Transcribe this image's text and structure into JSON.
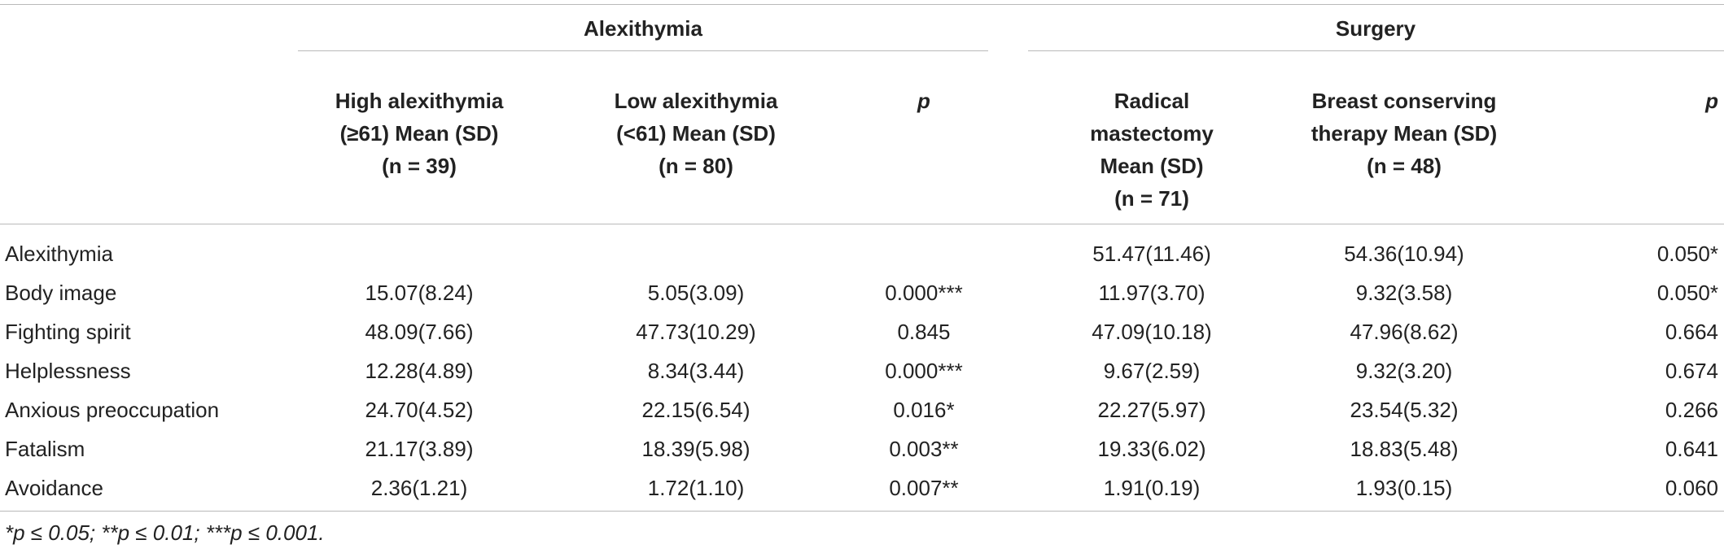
{
  "table": {
    "groups": {
      "alexithymia": "Alexithymia",
      "surgery": "Surgery"
    },
    "headers": {
      "high": [
        "High alexithymia",
        "(≥61) Mean (SD)",
        "(n = 39)"
      ],
      "low": [
        "Low alexithymia",
        "(<61) Mean (SD)",
        "(n = 80)"
      ],
      "p1": "p",
      "radical": [
        "Radical",
        "mastectomy",
        "Mean (SD)",
        "(n = 71)"
      ],
      "breast": [
        "Breast conserving",
        "therapy Mean (SD)",
        "(n = 48)"
      ],
      "p2": "p"
    },
    "rows": [
      {
        "label": "Alexithymia",
        "high": "",
        "low": "",
        "p1": "",
        "radical": "51.47(11.46)",
        "breast": "54.36(10.94)",
        "p2": "0.050*"
      },
      {
        "label": "Body image",
        "high": "15.07(8.24)",
        "low": "5.05(3.09)",
        "p1": "0.000***",
        "radical": "11.97(3.70)",
        "breast": "9.32(3.58)",
        "p2": "0.050*"
      },
      {
        "label": "Fighting spirit",
        "high": "48.09(7.66)",
        "low": "47.73(10.29)",
        "p1": "0.845",
        "radical": "47.09(10.18)",
        "breast": "47.96(8.62)",
        "p2": "0.664"
      },
      {
        "label": "Helplessness",
        "high": "12.28(4.89)",
        "low": "8.34(3.44)",
        "p1": "0.000***",
        "radical": "9.67(2.59)",
        "breast": "9.32(3.20)",
        "p2": "0.674"
      },
      {
        "label": "Anxious preoccupation",
        "high": "24.70(4.52)",
        "low": "22.15(6.54)",
        "p1": "0.016*",
        "radical": "22.27(5.97)",
        "breast": "23.54(5.32)",
        "p2": "0.266"
      },
      {
        "label": "Fatalism",
        "high": "21.17(3.89)",
        "low": "18.39(5.98)",
        "p1": "0.003**",
        "radical": "19.33(6.02)",
        "breast": "18.83(5.48)",
        "p2": "0.641"
      },
      {
        "label": "Avoidance",
        "high": "2.36(1.21)",
        "low": "1.72(1.10)",
        "p1": "0.007**",
        "radical": "1.91(0.19)",
        "breast": "1.93(0.15)",
        "p2": "0.060"
      }
    ],
    "footnote": "*p ≤ 0.05; **p ≤ 0.01; ***p ≤ 0.001."
  }
}
